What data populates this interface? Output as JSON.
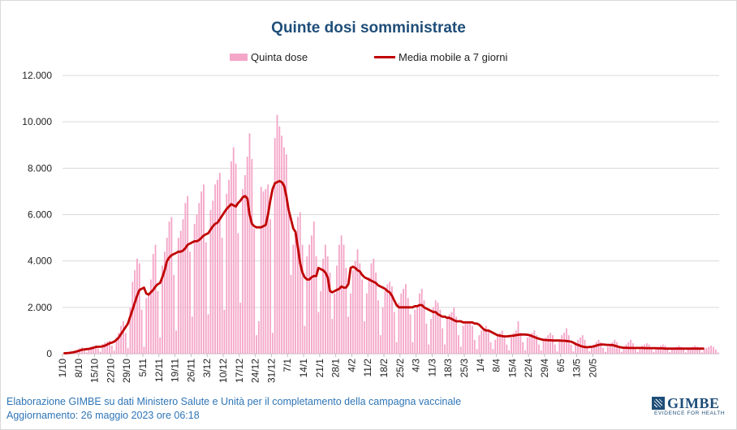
{
  "chart_data": {
    "type": "bar",
    "title": "Quinte dosi somministrate",
    "legend": [
      "Quinta dose",
      "Media mobile a 7 giorni"
    ],
    "legend_position": "top-center",
    "series": [
      {
        "name": "Quinta dose",
        "type": "bar",
        "color": "#f4a6c8",
        "values": [
          20,
          30,
          40,
          60,
          90,
          140,
          180,
          230,
          280,
          170,
          60,
          250,
          310,
          330,
          360,
          220,
          90,
          420,
          480,
          520,
          560,
          350,
          130,
          700,
          900,
          1200,
          1400,
          900,
          250,
          2000,
          3100,
          3600,
          4100,
          3900,
          1900,
          300,
          2400,
          2600,
          3200,
          4300,
          4700,
          2700,
          700,
          3800,
          4400,
          5000,
          5700,
          5900,
          3400,
          1000,
          5000,
          5300,
          5800,
          6500,
          6800,
          4400,
          1600,
          5600,
          6000,
          6500,
          7000,
          7300,
          4800,
          1700,
          6200,
          6600,
          7300,
          7500,
          7800,
          5000,
          1900,
          6900,
          7500,
          8300,
          8900,
          8200,
          5200,
          2200,
          7100,
          7700,
          8500,
          9500,
          8400,
          5400,
          800,
          1400,
          7200,
          7000,
          7100,
          7300,
          5800,
          900,
          9300,
          10300,
          9800,
          9400,
          8900,
          8600,
          6200,
          3400,
          4700,
          5300,
          5900,
          6100,
          4700,
          1200,
          4200,
          4700,
          5100,
          5700,
          4200,
          1800,
          2700,
          4100,
          4700,
          4200,
          3500,
          1500,
          2600,
          3800,
          4700,
          5100,
          4700,
          3700,
          1600,
          2600,
          3600,
          4000,
          4500,
          3900,
          3200,
          1400,
          2600,
          3300,
          3900,
          4100,
          3500,
          2300,
          800,
          2000,
          2700,
          3000,
          3100,
          2900,
          1800,
          500,
          2200,
          2600,
          2800,
          3000,
          2400,
          1700,
          500,
          1900,
          2100,
          2600,
          2800,
          2300,
          1300,
          400,
          1500,
          2000,
          2300,
          2200,
          1900,
          1100,
          400,
          1500,
          1700,
          1800,
          2000,
          1600,
          800,
          300,
          1200,
          1300,
          1400,
          1300,
          1200,
          600,
          200,
          800,
          1000,
          1100,
          1200,
          1000,
          500,
          200,
          600,
          800,
          900,
          1000,
          800,
          400,
          150,
          700,
          900,
          1000,
          1400,
          900,
          500,
          150,
          700,
          800,
          900,
          1000,
          800,
          400,
          150,
          600,
          700,
          800,
          900,
          800,
          400,
          100,
          600,
          800,
          900,
          1100,
          800,
          400,
          100,
          500,
          600,
          700,
          800,
          600,
          300,
          100,
          300,
          400,
          500,
          600,
          500,
          250,
          80,
          300,
          400,
          500,
          600,
          500,
          250,
          80,
          300,
          400,
          500,
          600,
          450,
          250,
          80,
          250,
          350,
          400,
          450,
          400,
          200,
          80,
          250,
          300,
          350,
          400,
          350,
          200,
          70,
          200,
          250,
          300,
          350,
          300,
          180,
          60,
          200,
          250,
          300,
          350,
          300,
          180,
          60,
          200,
          250,
          300,
          350,
          300,
          180,
          60
        ]
      },
      {
        "name": "Media mobile a 7 giorni",
        "type": "line",
        "color": "#c00000",
        "values": [
          20,
          25,
          30,
          45,
          60,
          80,
          110,
          140,
          170,
          190,
          200,
          210,
          230,
          260,
          290,
          300,
          300,
          320,
          350,
          400,
          450,
          480,
          520,
          600,
          700,
          850,
          1000,
          1150,
          1300,
          1600,
          1900,
          2200,
          2500,
          2750,
          2800,
          2850,
          2600,
          2550,
          2650,
          2750,
          2900,
          3000,
          3050,
          3300,
          3600,
          4000,
          4150,
          4250,
          4300,
          4350,
          4400,
          4400,
          4450,
          4550,
          4700,
          4750,
          4800,
          4850,
          4850,
          4900,
          5000,
          5100,
          5150,
          5200,
          5350,
          5500,
          5600,
          5650,
          5800,
          5950,
          6100,
          6250,
          6350,
          6450,
          6400,
          6350,
          6500,
          6600,
          6750,
          6800,
          6700,
          6000,
          5600,
          5500,
          5450,
          5450,
          5450,
          5500,
          5550,
          6000,
          6600,
          7100,
          7350,
          7400,
          7450,
          7400,
          7250,
          6800,
          6200,
          5800,
          5400,
          5250,
          4600,
          3900,
          3500,
          3300,
          3200,
          3200,
          3300,
          3350,
          3350,
          3700,
          3650,
          3600,
          3500,
          3300,
          2700,
          2650,
          2700,
          2750,
          2800,
          2900,
          2850,
          2850,
          3000,
          3700,
          3750,
          3700,
          3600,
          3550,
          3400,
          3300,
          3250,
          3200,
          3150,
          3100,
          3050,
          2950,
          2900,
          2850,
          2800,
          2700,
          2650,
          2500,
          2300,
          2100,
          2000,
          2000,
          2000,
          2000,
          2000,
          2000,
          2000,
          2050,
          2050,
          2100,
          2100,
          2000,
          1950,
          1900,
          1850,
          1800,
          1800,
          1700,
          1650,
          1600,
          1600,
          1550,
          1550,
          1500,
          1450,
          1400,
          1400,
          1400,
          1350,
          1350,
          1350,
          1350,
          1350,
          1300,
          1300,
          1250,
          1150,
          1050,
          1000,
          1000,
          950,
          900,
          850,
          800,
          780,
          760,
          750,
          750,
          760,
          770,
          780,
          800,
          820,
          830,
          830,
          830,
          820,
          800,
          760,
          720,
          680,
          650,
          620,
          600,
          590,
          580,
          580,
          570,
          570,
          570,
          570,
          560,
          560,
          550,
          540,
          520,
          480,
          420,
          380,
          340,
          310,
          290,
          280,
          290,
          300,
          320,
          350,
          380,
          400,
          400,
          390,
          380,
          380,
          370,
          350,
          320,
          290,
          270,
          260,
          260,
          250,
          250,
          250,
          250,
          250,
          250,
          250,
          240,
          240,
          240,
          240,
          240,
          240,
          230,
          230,
          230,
          220,
          220,
          220,
          220,
          220,
          220,
          220,
          220,
          220,
          220,
          220,
          220,
          220,
          220,
          220,
          220,
          220,
          220
        ]
      }
    ],
    "x_tick_labels": [
      "1/10",
      "8/10",
      "15/10",
      "22/10",
      "29/10",
      "5/11",
      "12/11",
      "19/11",
      "26/11",
      "3/12",
      "10/12",
      "17/12",
      "24/12",
      "31/12",
      "7/1",
      "14/1",
      "21/1",
      "28/1",
      "4/2",
      "11/2",
      "18/2",
      "25/2",
      "4/3",
      "11/3",
      "18/3",
      "25/3",
      "1/4",
      "8/4",
      "15/4",
      "22/4",
      "29/4",
      "6/5",
      "13/5",
      "20/5"
    ],
    "ylim": [
      0,
      12000
    ],
    "y_tick_labels": [
      "0",
      "2.000",
      "4.000",
      "6.000",
      "8.000",
      "10.000",
      "12.000"
    ],
    "y_tick_values": [
      0,
      2000,
      4000,
      6000,
      8000,
      10000,
      12000
    ],
    "grid": "horizontal"
  },
  "footer": {
    "source": "Elaborazione GIMBE su dati Ministero Salute e Unità per il completamento della campagna vaccinale",
    "updated": "Aggiornamento: 26 maggio 2023 ore 06:18"
  },
  "logo": {
    "name": "GIMBE",
    "tagline": "EVIDENCE FOR HEALTH"
  }
}
